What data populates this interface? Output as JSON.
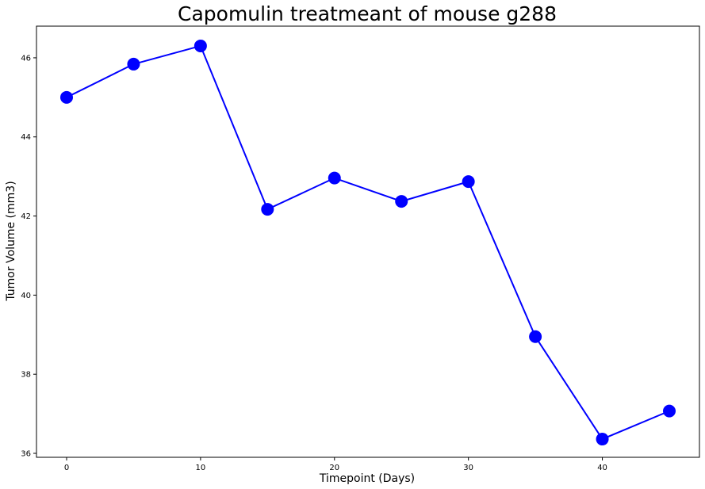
{
  "chart_data": {
    "type": "line",
    "title": "Capomulin treatmeant of mouse g288",
    "xlabel": "Timepoint (Days)",
    "ylabel": "Tumor Volume (mm3)",
    "x": [
      0,
      5,
      10,
      15,
      20,
      25,
      30,
      35,
      40,
      45
    ],
    "series": [
      {
        "values": [
          45.0,
          45.84,
          46.3,
          42.17,
          42.96,
          42.37,
          42.87,
          38.95,
          36.36,
          37.07
        ],
        "color": "#0000ff",
        "marker": "circle"
      }
    ],
    "xlim": [
      -2.25,
      47.25
    ],
    "ylim": [
      35.9,
      46.8
    ],
    "xticks": [
      0,
      10,
      20,
      30,
      40
    ],
    "yticks": [
      36,
      38,
      40,
      42,
      44,
      46
    ],
    "grid": false
  }
}
